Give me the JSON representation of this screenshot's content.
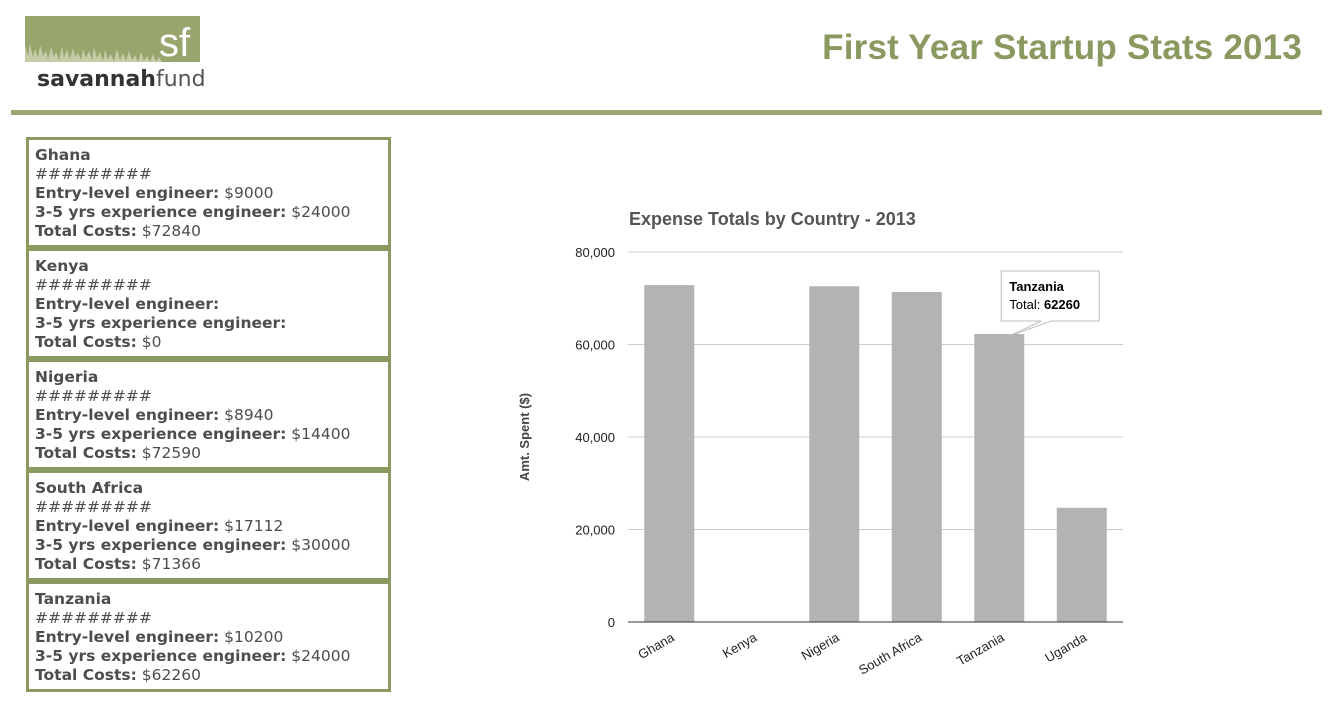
{
  "header": {
    "logo_mark": "sf",
    "logo_word_1": "savannah",
    "logo_word_2": "fund",
    "title": "First Year Startup Stats 2013"
  },
  "labels": {
    "entry": "Entry-level engineer:",
    "experienced": "3-5 yrs experience engineer:",
    "total": "Total Costs:"
  },
  "cards": [
    {
      "country": "Ghana",
      "hashes": "#########",
      "entry": "$9000",
      "experienced": "$24000",
      "total": "$72840"
    },
    {
      "country": "Kenya",
      "hashes": "#########",
      "entry": "",
      "experienced": "",
      "total": "$0"
    },
    {
      "country": "Nigeria",
      "hashes": "#########",
      "entry": "$8940",
      "experienced": "$14400",
      "total": "$72590"
    },
    {
      "country": "South Africa",
      "hashes": "#########",
      "entry": "$17112",
      "experienced": "$30000",
      "total": "$71366"
    },
    {
      "country": "Tanzania",
      "hashes": "#########",
      "entry": "$10200",
      "experienced": "$24000",
      "total": "$62260"
    }
  ],
  "colors": {
    "brand": "#8a9960",
    "bar": "#b3b3b3",
    "grid": "#cccccc"
  },
  "chart_data": {
    "type": "bar",
    "title": "Expense Totals by Country - 2013",
    "xlabel": "",
    "ylabel": "Amt. Spent ($)",
    "categories": [
      "Ghana",
      "Kenya",
      "Nigeria",
      "South Africa",
      "Tanzania",
      "Uganda"
    ],
    "values": [
      72840,
      0,
      72590,
      71366,
      62260,
      24700
    ],
    "ylim": [
      0,
      80000
    ],
    "yticks": [
      0,
      20000,
      40000,
      60000,
      80000
    ],
    "ytick_labels": [
      "0",
      "20,000",
      "40,000",
      "60,000",
      "80,000"
    ],
    "grid": true,
    "legend": "none",
    "tooltip": {
      "category": "Tanzania",
      "label": "Total:",
      "value": "62260"
    }
  }
}
